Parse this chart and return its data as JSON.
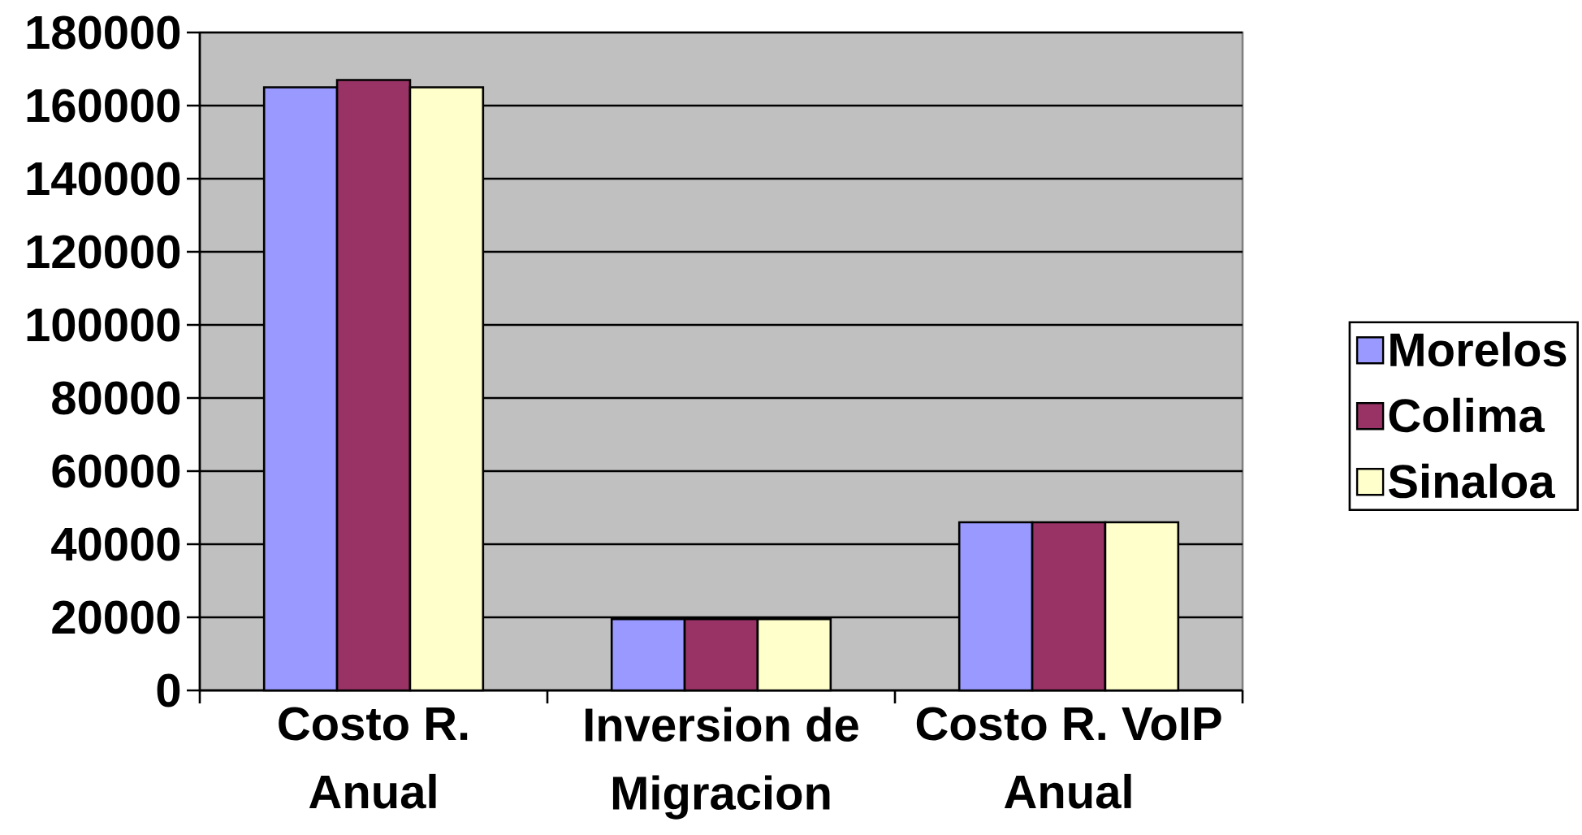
{
  "chart_data": {
    "type": "bar",
    "categories": [
      "Costo R. Anual",
      "Inversion de Migracion",
      "Costo R. VoIP Anual"
    ],
    "series": [
      {
        "name": "Morelos",
        "color": "#9999ff",
        "values": [
          165000,
          19500,
          46000
        ]
      },
      {
        "name": "Colima",
        "color": "#993366",
        "values": [
          167000,
          19500,
          46000
        ]
      },
      {
        "name": "Sinaloa",
        "color": "#ffffcc",
        "values": [
          165000,
          19500,
          46000
        ]
      }
    ],
    "ylim": [
      0,
      180000
    ],
    "yticks": [
      0,
      20000,
      40000,
      60000,
      80000,
      100000,
      120000,
      140000,
      160000,
      180000
    ],
    "grid": "y",
    "legend": "right"
  }
}
